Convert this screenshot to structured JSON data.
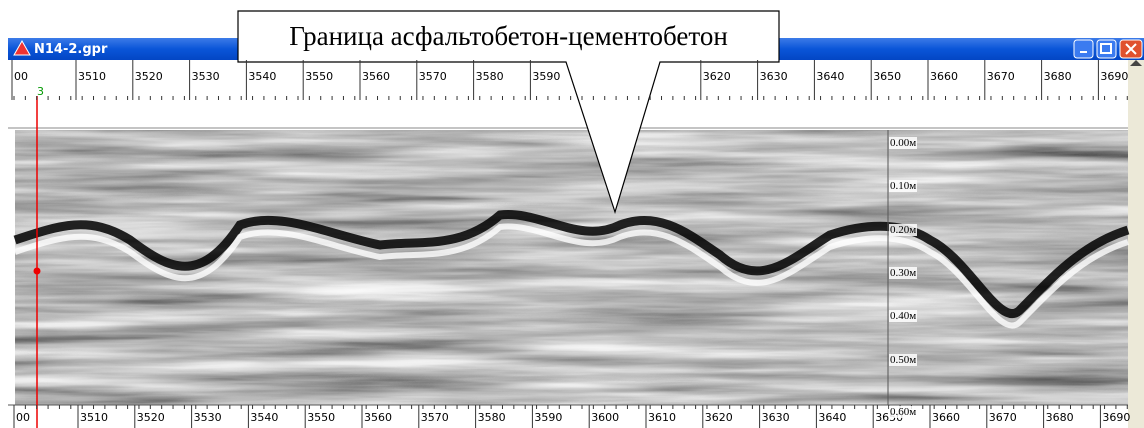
{
  "window": {
    "title": "N14-2.gpr"
  },
  "callout": {
    "text": "Граница асфальтобетон-цементобетон"
  },
  "ruler_top": {
    "labels": [
      "00",
      "3510",
      "3520",
      "3530",
      "3540",
      "3550",
      "3560",
      "3570",
      "3580",
      "3590",
      "3620",
      "3630",
      "3640",
      "3650",
      "3660",
      "3670",
      "3680",
      "3690"
    ]
  },
  "marker": {
    "label": "3"
  },
  "depth_scale": {
    "labels": [
      "0.00м",
      "0.10м",
      "0.20м",
      "0.30м",
      "0.40м",
      "0.50м",
      "0.60м"
    ]
  },
  "ruler_bottom": {
    "labels": [
      "00",
      "3510",
      "3520",
      "3530",
      "3540",
      "3550",
      "3560",
      "3570",
      "3580",
      "3590",
      "3600",
      "3610",
      "3620",
      "3630",
      "3640",
      "3650",
      "3660",
      "3670",
      "3680",
      "3690"
    ]
  }
}
